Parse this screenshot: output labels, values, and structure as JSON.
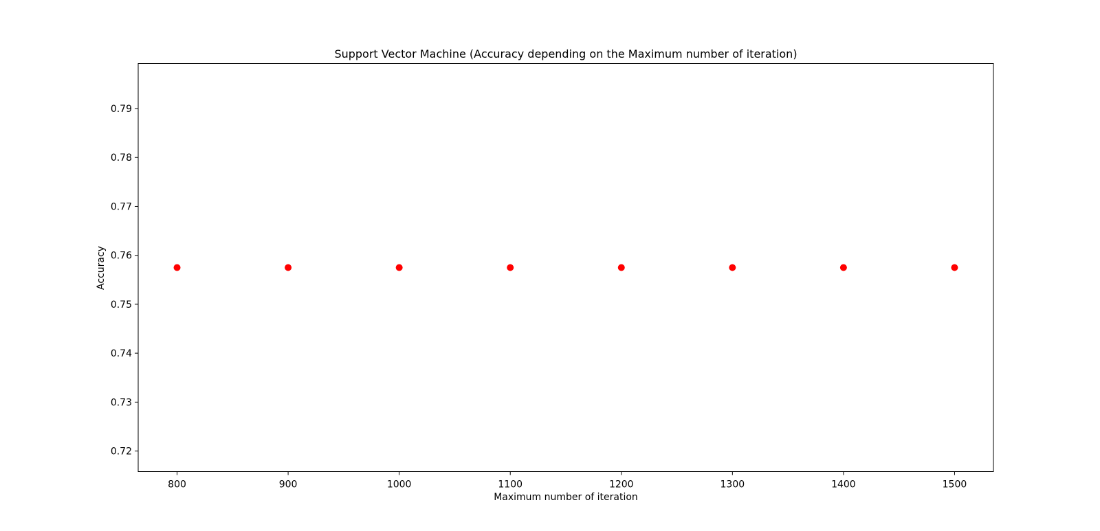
{
  "chart_data": {
    "type": "scatter",
    "title": "Support Vector Machine (Accuracy depending on the Maximum number of iteration)",
    "xlabel": "Maximum number of iteration",
    "ylabel": "Accuracy",
    "x": [
      800,
      900,
      1000,
      1100,
      1200,
      1300,
      1400,
      1500
    ],
    "y": [
      0.7575,
      0.7575,
      0.7575,
      0.7575,
      0.7575,
      0.7575,
      0.7575,
      0.7575
    ],
    "xticks": [
      800,
      900,
      1000,
      1100,
      1200,
      1300,
      1400,
      1500
    ],
    "yticks": [
      0.72,
      0.73,
      0.74,
      0.75,
      0.76,
      0.77,
      0.78,
      0.79
    ],
    "xlim": [
      765,
      1535
    ],
    "ylim": [
      0.7158,
      0.7992
    ],
    "grid": false,
    "marker_color": "#ff0000",
    "axis_color": "#000000"
  }
}
